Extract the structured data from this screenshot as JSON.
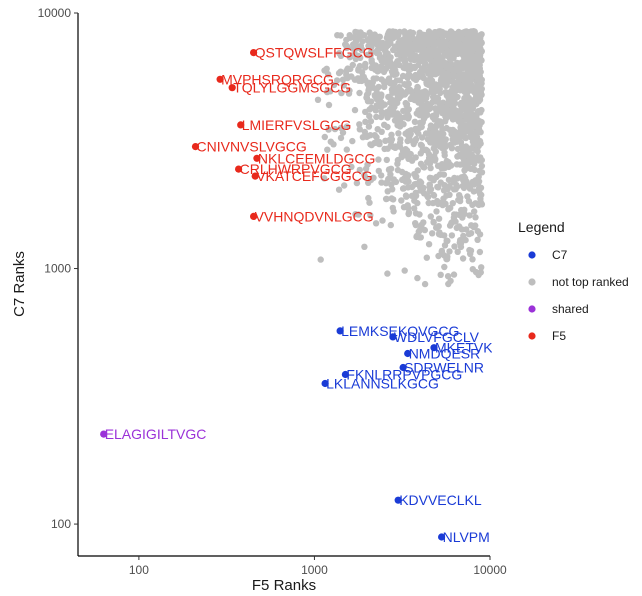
{
  "chart_data": {
    "type": "scatter",
    "x_scale": "log",
    "y_scale": "log",
    "xlabel": "F5 Ranks",
    "ylabel": "C7 Ranks",
    "xlim": [
      45,
      10000
    ],
    "ylim": [
      75,
      10000
    ],
    "xticks": [
      {
        "value": 100,
        "label": "100"
      },
      {
        "value": 1000,
        "label": "1000"
      },
      {
        "value": 10000,
        "label": "10000"
      }
    ],
    "yticks": [
      {
        "value": 100,
        "label": "100"
      },
      {
        "value": 1000,
        "label": "1000"
      },
      {
        "value": 10000,
        "label": "10000"
      }
    ],
    "grid": false,
    "legend": {
      "title": "Legend",
      "placement": "right",
      "entries": [
        {
          "key": "C7",
          "label": "C7",
          "color": "#1a3bd6"
        },
        {
          "key": "not",
          "label": "not top ranked",
          "color": "#bebebe"
        },
        {
          "key": "shared",
          "label": "shared",
          "color": "#9b32d8"
        },
        {
          "key": "F5",
          "label": "F5",
          "color": "#e8291c"
        }
      ]
    },
    "background_cloud": {
      "group": "not",
      "x_range": [
        1000,
        9000
      ],
      "y_range": [
        620,
        8500
      ],
      "count": 1700,
      "description": "dense cloud of grey points"
    },
    "labeled_points": [
      {
        "label": "QSTQWSLFFGCG",
        "x": 450,
        "y": 7000,
        "group": "F5"
      },
      {
        "label": "MVPHSRQRGCG",
        "x": 290,
        "y": 5500,
        "group": "F5"
      },
      {
        "label": "TQLYLGGMSGCG",
        "x": 340,
        "y": 5100,
        "group": "F5"
      },
      {
        "label": "LMIERFVSLGCG",
        "x": 380,
        "y": 3650,
        "group": "F5"
      },
      {
        "label": "CNIVNVSLVGCG",
        "x": 210,
        "y": 3000,
        "group": "F5"
      },
      {
        "label": "NKLCEEMLDGCG",
        "x": 470,
        "y": 2700,
        "group": "F5"
      },
      {
        "label": "CRLHWRPVGCG",
        "x": 370,
        "y": 2450,
        "group": "F5"
      },
      {
        "label": "VKATCEFCGGCG",
        "x": 460,
        "y": 2300,
        "group": "F5"
      },
      {
        "label": "VVHNQDVNLGCG",
        "x": 450,
        "y": 1600,
        "group": "F5"
      },
      {
        "label": "ELAGIGILTVGC",
        "x": 63,
        "y": 225,
        "group": "shared"
      },
      {
        "label": "LEMKSEKQVGCG",
        "x": 1400,
        "y": 570,
        "group": "C7"
      },
      {
        "label": "WDLVFGCLV",
        "x": 2800,
        "y": 540,
        "group": "C7"
      },
      {
        "label": "NMDQESR",
        "x": 3400,
        "y": 465,
        "group": "C7"
      },
      {
        "label": "MKETVK",
        "x": 4800,
        "y": 490,
        "group": "C7"
      },
      {
        "label": "SDRWELNR",
        "x": 3200,
        "y": 410,
        "group": "C7"
      },
      {
        "label": "FKNLRRPVPGCG",
        "x": 1500,
        "y": 385,
        "group": "C7"
      },
      {
        "label": "LKLANNSLKGCG",
        "x": 1150,
        "y": 355,
        "group": "C7"
      },
      {
        "label": "KDVVECLKL",
        "x": 3000,
        "y": 124,
        "group": "C7"
      },
      {
        "label": "NLVPM",
        "x": 5300,
        "y": 89,
        "group": "C7"
      }
    ]
  }
}
